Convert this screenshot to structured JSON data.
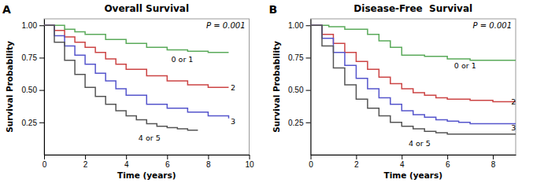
{
  "chart_data": [
    {
      "type": "step",
      "panel_label": "A",
      "title": "Overall Survival",
      "x_label": "Time (years)",
      "y_label": "Survival Probability",
      "xlim": [
        0,
        10
      ],
      "ylim": [
        0,
        1.05
      ],
      "xticks": [
        0,
        2,
        4,
        6,
        8,
        10
      ],
      "yticks": [
        0.25,
        {
          "value": 0.5,
          "label": "0.50"
        },
        0.75,
        {
          "value": 1.0,
          "label": "1.00"
        }
      ],
      "series": [
        {
          "color": "#5aaa5a",
          "x": [
            0,
            1.0,
            1.5,
            2.0,
            3.0,
            4.0,
            5.0,
            6.0,
            7.0,
            8.0,
            9.0
          ],
          "values": [
            1.0,
            0.97,
            0.95,
            0.93,
            0.89,
            0.86,
            0.83,
            0.81,
            0.8,
            0.79,
            0.79
          ]
        },
        {
          "color": "#cc4444",
          "x": [
            0,
            0.5,
            1.0,
            1.5,
            2.0,
            2.5,
            3.0,
            3.5,
            4.0,
            5.0,
            6.0,
            7.0,
            8.0,
            9.0
          ],
          "values": [
            1.0,
            0.96,
            0.91,
            0.87,
            0.83,
            0.79,
            0.74,
            0.7,
            0.66,
            0.61,
            0.57,
            0.54,
            0.52,
            0.52
          ]
        },
        {
          "color": "#5555cc",
          "x": [
            0,
            0.5,
            1.0,
            1.5,
            2.0,
            2.5,
            3.0,
            3.5,
            4.0,
            5.0,
            6.0,
            7.0,
            8.0,
            9.0
          ],
          "values": [
            1.0,
            0.92,
            0.84,
            0.77,
            0.7,
            0.63,
            0.57,
            0.51,
            0.46,
            0.39,
            0.36,
            0.33,
            0.3,
            0.28
          ]
        },
        {
          "color": "#555555",
          "x": [
            0,
            0.5,
            1.0,
            1.5,
            2.0,
            2.5,
            3.0,
            3.5,
            4.0,
            4.5,
            5.0,
            5.5,
            6.0,
            6.5,
            7.0,
            7.5
          ],
          "values": [
            1.0,
            0.87,
            0.73,
            0.62,
            0.52,
            0.45,
            0.39,
            0.34,
            0.3,
            0.27,
            0.24,
            0.22,
            0.21,
            0.2,
            0.19,
            0.19
          ]
        }
      ],
      "annotations": [
        {
          "text": "P = 0.001"
        },
        {
          "text": "0 or 1",
          "x": 6.2,
          "y": 0.74
        },
        {
          "text": "2",
          "x": 9.1,
          "y": 0.52
        },
        {
          "text": "3",
          "x": 9.1,
          "y": 0.26
        },
        {
          "text": "4 or 5",
          "x": 4.6,
          "y": 0.13
        }
      ]
    },
    {
      "type": "step",
      "panel_label": "B",
      "title": "Disease-Free  Survival",
      "x_label": "Time (years)",
      "y_label": "Survival Probability",
      "xlim": [
        0,
        9
      ],
      "ylim": [
        0,
        1.05
      ],
      "xticks": [
        0,
        2,
        4,
        6,
        8
      ],
      "yticks": [
        0.25,
        {
          "value": 0.5,
          "label": "0.50"
        },
        0.75,
        {
          "value": 1.0,
          "label": "1.00"
        }
      ],
      "series": [
        {
          "color": "#5aaa5a",
          "x": [
            0,
            0.8,
            1.5,
            2.5,
            3.0,
            3.5,
            4.0,
            5.0,
            6.0,
            7.0,
            8.0,
            9.0
          ],
          "values": [
            1.0,
            0.99,
            0.97,
            0.93,
            0.88,
            0.83,
            0.77,
            0.76,
            0.74,
            0.73,
            0.73,
            0.73
          ]
        },
        {
          "color": "#cc4444",
          "x": [
            0,
            0.5,
            1.0,
            1.5,
            2.0,
            2.5,
            3.0,
            3.5,
            4.0,
            4.5,
            5.0,
            5.5,
            6.0,
            7.0,
            8.0,
            9.0
          ],
          "values": [
            1.0,
            0.93,
            0.86,
            0.79,
            0.72,
            0.66,
            0.6,
            0.55,
            0.51,
            0.48,
            0.46,
            0.44,
            0.43,
            0.42,
            0.41,
            0.41
          ]
        },
        {
          "color": "#5555cc",
          "x": [
            0,
            0.5,
            1.0,
            1.5,
            2.0,
            2.5,
            3.0,
            3.5,
            4.0,
            4.5,
            5.0,
            5.5,
            6.0,
            6.5,
            7.0,
            8.0,
            9.0
          ],
          "values": [
            1.0,
            0.9,
            0.79,
            0.69,
            0.59,
            0.51,
            0.44,
            0.39,
            0.34,
            0.31,
            0.29,
            0.27,
            0.26,
            0.25,
            0.24,
            0.24,
            0.24
          ]
        },
        {
          "color": "#555555",
          "x": [
            0,
            0.5,
            1.0,
            1.5,
            2.0,
            2.5,
            3.0,
            3.5,
            4.0,
            4.5,
            5.0,
            5.5,
            6.0,
            6.5,
            7.0,
            8.0,
            9.0
          ],
          "values": [
            1.0,
            0.84,
            0.67,
            0.54,
            0.43,
            0.36,
            0.3,
            0.25,
            0.22,
            0.2,
            0.18,
            0.17,
            0.16,
            0.16,
            0.16,
            0.16,
            0.16
          ]
        }
      ],
      "annotations": [
        {
          "text": "P = 0.001"
        },
        {
          "text": "0 or 1",
          "x": 6.3,
          "y": 0.69
        },
        {
          "text": "2",
          "x": 8.8,
          "y": 0.41
        },
        {
          "text": "3",
          "x": 8.8,
          "y": 0.21
        },
        {
          "text": "4 or 5",
          "x": 4.3,
          "y": 0.09
        }
      ]
    }
  ]
}
